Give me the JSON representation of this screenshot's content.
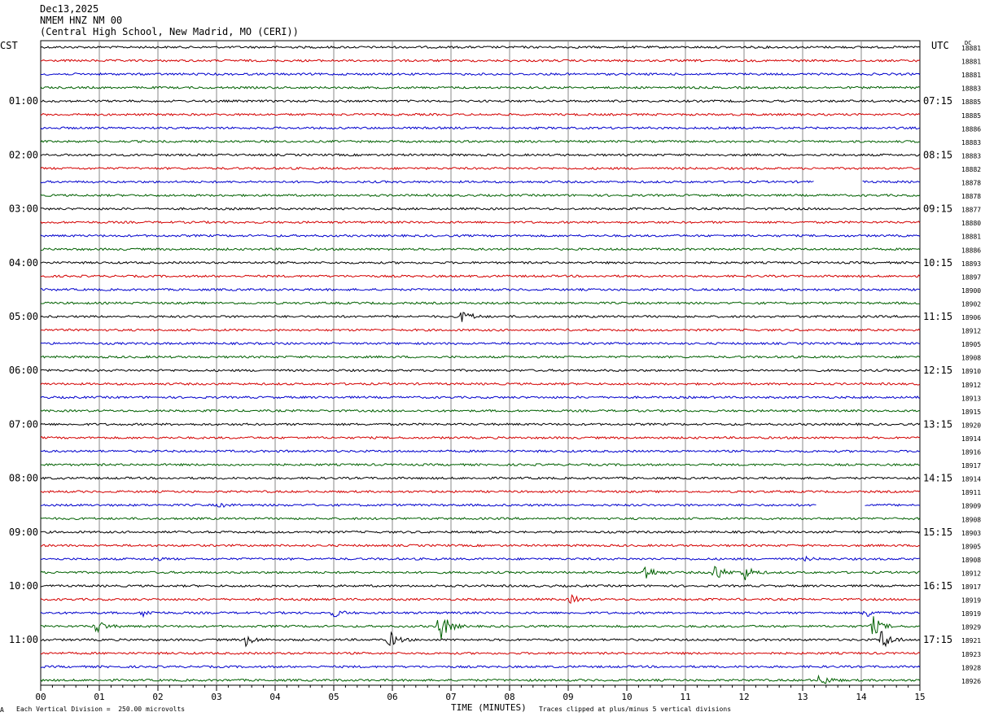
{
  "header": {
    "date": "Dec13,2025",
    "station": "NMEM HNZ NM 00",
    "location": "(Central High School, New Madrid, MO (CERI))"
  },
  "left_tz": "CST",
  "right_tz": "UTC",
  "dc_label": "DC",
  "footer": {
    "scale": "Each Vertical Division =  250.00 microvolts",
    "clip": "Traces clipped at plus/minus 5 vertical divisions",
    "corner": "A"
  },
  "chart_data": {
    "type": "line",
    "title": "",
    "xlabel": "TIME (MINUTES)",
    "ylabel": "",
    "xlim": [
      0,
      15
    ],
    "x_ticks": [
      "00",
      "01",
      "02",
      "03",
      "04",
      "05",
      "06",
      "07",
      "08",
      "09",
      "10",
      "11",
      "12",
      "13",
      "14",
      "15"
    ],
    "grid": true,
    "trace_colors": [
      "#000000",
      "#d40000",
      "#0000cc",
      "#006000"
    ],
    "left_hour_labels": [
      "01:00",
      "02:00",
      "03:00",
      "04:00",
      "05:00",
      "06:00",
      "07:00",
      "08:00",
      "09:00",
      "10:00",
      "11:00"
    ],
    "right_hour_labels": [
      "07:15",
      "08:15",
      "09:15",
      "10:15",
      "11:15",
      "12:15",
      "13:15",
      "14:15",
      "15:15",
      "16:15",
      "17:15"
    ],
    "hour_label_rows": [
      4,
      8,
      12,
      16,
      20,
      24,
      28,
      32,
      36,
      40,
      44
    ],
    "dc_offsets": [
      18881,
      18881,
      18881,
      18883,
      18885,
      18885,
      18886,
      18883,
      18883,
      18882,
      18878,
      18878,
      18877,
      18880,
      18881,
      18886,
      18893,
      18897,
      18900,
      18902,
      18906,
      18912,
      18905,
      18908,
      18910,
      18912,
      18913,
      18915,
      18920,
      18914,
      18916,
      18917,
      18914,
      18911,
      18909,
      18908,
      18903,
      18905,
      18908,
      18912,
      18917,
      18919,
      18919,
      18929,
      18921,
      18923,
      18928,
      18926
    ],
    "data_gaps": [
      {
        "trace": 10,
        "from_min": 13.2,
        "to_min": 14.0
      },
      {
        "trace": 34,
        "from_min": 13.25,
        "to_min": 14.05
      }
    ],
    "events": [
      {
        "trace": 20,
        "minute": 7.2,
        "amp": 9
      },
      {
        "trace": 34,
        "minute": 3.05,
        "amp": 2
      },
      {
        "trace": 38,
        "minute": 1.9,
        "amp": 2
      },
      {
        "trace": 38,
        "minute": 13.05,
        "amp": 2
      },
      {
        "trace": 39,
        "minute": 10.3,
        "amp": 11
      },
      {
        "trace": 39,
        "minute": 11.5,
        "amp": 11
      },
      {
        "trace": 39,
        "minute": 12.0,
        "amp": 10
      },
      {
        "trace": 41,
        "minute": 9.05,
        "amp": 5
      },
      {
        "trace": 42,
        "minute": 1.75,
        "amp": 4
      },
      {
        "trace": 42,
        "minute": 5.0,
        "amp": 5
      },
      {
        "trace": 42,
        "minute": 14.05,
        "amp": 7
      },
      {
        "trace": 43,
        "minute": 0.95,
        "amp": 9
      },
      {
        "trace": 43,
        "minute": 6.8,
        "amp": 22
      },
      {
        "trace": 43,
        "minute": 14.2,
        "amp": 12
      },
      {
        "trace": 44,
        "minute": 3.5,
        "amp": 7
      },
      {
        "trace": 44,
        "minute": 5.95,
        "amp": 10
      },
      {
        "trace": 44,
        "minute": 14.35,
        "amp": 14
      },
      {
        "trace": 47,
        "minute": 13.3,
        "amp": 8
      }
    ]
  }
}
